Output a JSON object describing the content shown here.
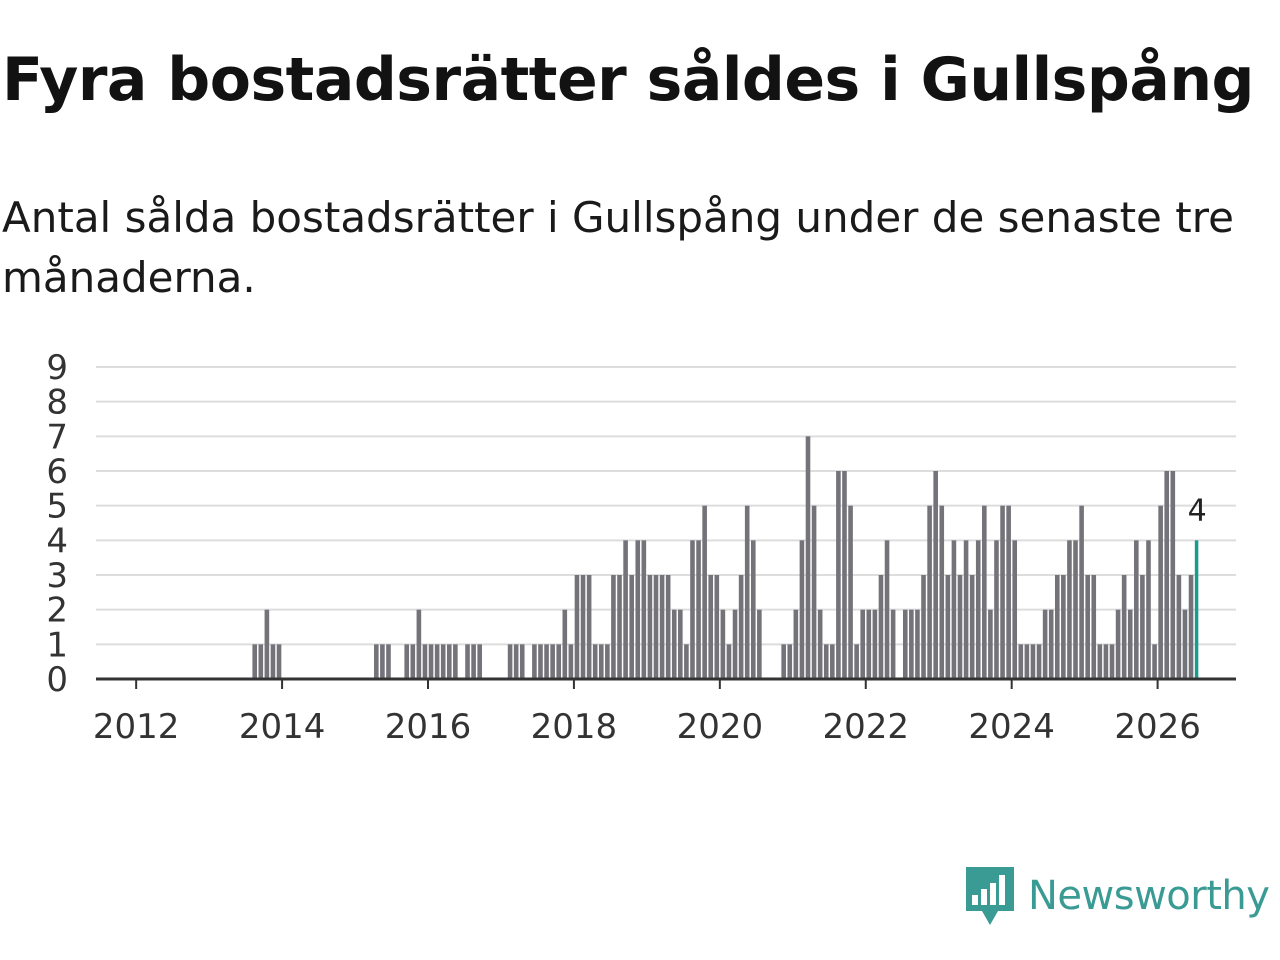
{
  "title": "Fyra bostadsrätter såldes i Gullspång",
  "subtitle": "Antal sålda bostadsrätter i Gullspång under de senaste tre månaderna.",
  "brand": {
    "name": "Newsworthy",
    "color": "#3a9a94",
    "icon": "newsworthy-logo-icon"
  },
  "colors": {
    "bar": "#74737a",
    "highlight": "#1b9a8e",
    "grid": "#dddddd",
    "axis": "#333333"
  },
  "chart_data": {
    "type": "bar",
    "title": "Fyra bostadsrätter såldes i Gullspång",
    "xlabel": "",
    "ylabel": "",
    "ylim": [
      0,
      9
    ],
    "yticks": [
      "0",
      "1",
      "2",
      "3",
      "4",
      "5",
      "6",
      "7",
      "8",
      "9"
    ],
    "xticks": [
      "2012",
      "2014",
      "2016",
      "2018",
      "2020",
      "2022",
      "2024",
      "2026"
    ],
    "grid": true,
    "start_month": "2011-06",
    "frequency": "monthly",
    "values": [
      0,
      0,
      0,
      0,
      0,
      0,
      0,
      0,
      0,
      0,
      0,
      0,
      0,
      0,
      0,
      0,
      0,
      0,
      0,
      0,
      0,
      0,
      0,
      0,
      0,
      0,
      1,
      1,
      2,
      1,
      1,
      0,
      0,
      0,
      0,
      0,
      0,
      0,
      0,
      0,
      0,
      0,
      0,
      0,
      0,
      0,
      1,
      1,
      1,
      0,
      0,
      1,
      1,
      2,
      1,
      1,
      1,
      1,
      1,
      1,
      0,
      1,
      1,
      1,
      0,
      0,
      0,
      0,
      1,
      1,
      1,
      0,
      1,
      1,
      1,
      1,
      1,
      2,
      1,
      3,
      3,
      3,
      1,
      1,
      1,
      3,
      3,
      4,
      3,
      4,
      4,
      3,
      3,
      3,
      3,
      2,
      2,
      1,
      4,
      4,
      5,
      3,
      3,
      2,
      1,
      2,
      3,
      5,
      4,
      2,
      0,
      0,
      0,
      1,
      1,
      2,
      4,
      7,
      5,
      2,
      1,
      1,
      6,
      6,
      5,
      1,
      2,
      2,
      2,
      3,
      4,
      2,
      0,
      2,
      2,
      2,
      3,
      5,
      6,
      5,
      3,
      4,
      3,
      4,
      3,
      4,
      5,
      2,
      4,
      5,
      5,
      4,
      1,
      1,
      1,
      1,
      2,
      2,
      3,
      3,
      4,
      4,
      5,
      3,
      3,
      1,
      1,
      1,
      2,
      3,
      2,
      4,
      3,
      4,
      1,
      5,
      6,
      6,
      3,
      2,
      3,
      4
    ],
    "highlight_last": true,
    "annotations": [
      {
        "label": "4",
        "target": "last"
      }
    ]
  }
}
